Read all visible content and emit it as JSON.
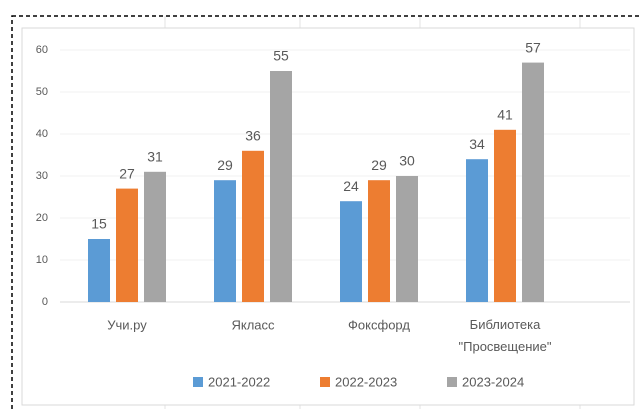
{
  "chart_data": {
    "type": "bar",
    "categories": [
      "Учи.ру",
      "Якласс",
      "Фоксфорд",
      "Библиотека \"Просвещение\""
    ],
    "series": [
      {
        "name": "2021-2022",
        "color": "#5b9bd5",
        "values": [
          15,
          29,
          24,
          34
        ]
      },
      {
        "name": "2022-2023",
        "color": "#ed7d31",
        "values": [
          27,
          36,
          29,
          41
        ]
      },
      {
        "name": "2023-2024",
        "color": "#a5a5a5",
        "values": [
          31,
          55,
          30,
          57
        ]
      }
    ],
    "ylim": [
      0,
      60
    ],
    "yticks": [
      0,
      10,
      20,
      30,
      40,
      50,
      60
    ],
    "grid": true,
    "legend": "bottom"
  }
}
